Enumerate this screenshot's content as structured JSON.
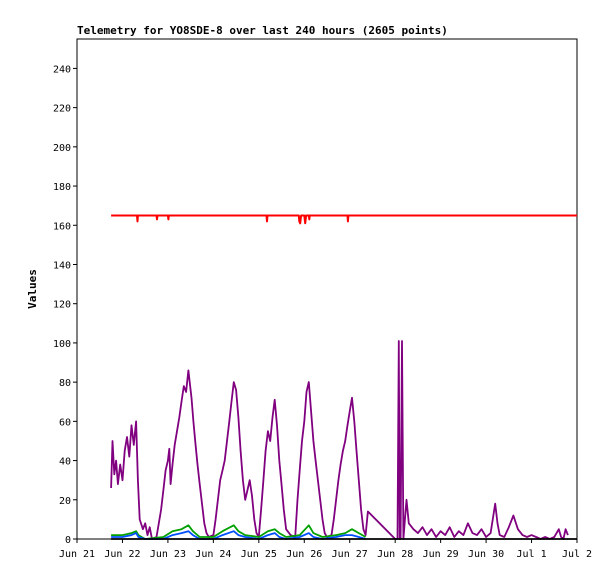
{
  "chart_data": {
    "type": "line",
    "title": "Telemetry for YO8SDE-8 over last 240 hours (2605 points)",
    "xlabel": "",
    "ylabel": "Values",
    "x_ticks": [
      "Jun 21",
      "Jun 22",
      "Jun 23",
      "Jun 24",
      "Jun 25",
      "Jun 26",
      "Jun 27",
      "Jun 28",
      "Jun 29",
      "Jun 30",
      "Jul 1",
      "Jul 2"
    ],
    "xlim_days": [
      0,
      11
    ],
    "y_ticks": [
      0,
      20,
      40,
      60,
      80,
      100,
      120,
      140,
      160,
      180,
      200,
      220,
      240
    ],
    "ylim": [
      0,
      255
    ],
    "grid": false,
    "legend": "none",
    "series": [
      {
        "color": "#ff0000",
        "points": [
          [
            0.75,
            165
          ],
          [
            1.32,
            165
          ],
          [
            1.33,
            162
          ],
          [
            1.34,
            165
          ],
          [
            1.75,
            165
          ],
          [
            1.76,
            163
          ],
          [
            1.77,
            165
          ],
          [
            2.0,
            165
          ],
          [
            2.01,
            163
          ],
          [
            2.02,
            165
          ],
          [
            4.17,
            165
          ],
          [
            4.18,
            162
          ],
          [
            4.19,
            165
          ],
          [
            4.88,
            165
          ],
          [
            4.89,
            162
          ],
          [
            4.91,
            161
          ],
          [
            4.93,
            165
          ],
          [
            5.0,
            165
          ],
          [
            5.02,
            161
          ],
          [
            5.04,
            165
          ],
          [
            5.1,
            165
          ],
          [
            5.11,
            163
          ],
          [
            5.12,
            165
          ],
          [
            5.95,
            165
          ],
          [
            5.96,
            162
          ],
          [
            5.97,
            165
          ],
          [
            11.0,
            165
          ]
        ]
      },
      {
        "color": "#800080",
        "points": [
          [
            0.75,
            26
          ],
          [
            0.78,
            50
          ],
          [
            0.82,
            33
          ],
          [
            0.86,
            40
          ],
          [
            0.9,
            28
          ],
          [
            0.95,
            38
          ],
          [
            1.0,
            30
          ],
          [
            1.05,
            45
          ],
          [
            1.1,
            52
          ],
          [
            1.15,
            42
          ],
          [
            1.2,
            58
          ],
          [
            1.25,
            48
          ],
          [
            1.3,
            60
          ],
          [
            1.34,
            30
          ],
          [
            1.38,
            10
          ],
          [
            1.45,
            5
          ],
          [
            1.5,
            8
          ],
          [
            1.55,
            2
          ],
          [
            1.6,
            6
          ],
          [
            1.65,
            0
          ],
          [
            1.75,
            1
          ],
          [
            1.85,
            15
          ],
          [
            1.9,
            25
          ],
          [
            1.95,
            35
          ],
          [
            2.0,
            40
          ],
          [
            2.03,
            46
          ],
          [
            2.06,
            28
          ],
          [
            2.1,
            38
          ],
          [
            2.15,
            48
          ],
          [
            2.2,
            55
          ],
          [
            2.25,
            62
          ],
          [
            2.3,
            70
          ],
          [
            2.35,
            78
          ],
          [
            2.4,
            75
          ],
          [
            2.45,
            86
          ],
          [
            2.48,
            80
          ],
          [
            2.52,
            72
          ],
          [
            2.56,
            60
          ],
          [
            2.6,
            50
          ],
          [
            2.65,
            38
          ],
          [
            2.7,
            28
          ],
          [
            2.75,
            18
          ],
          [
            2.8,
            8
          ],
          [
            2.85,
            3
          ],
          [
            2.9,
            1
          ],
          [
            3.0,
            2
          ],
          [
            3.05,
            10
          ],
          [
            3.1,
            20
          ],
          [
            3.15,
            30
          ],
          [
            3.2,
            35
          ],
          [
            3.25,
            40
          ],
          [
            3.3,
            50
          ],
          [
            3.35,
            60
          ],
          [
            3.4,
            70
          ],
          [
            3.45,
            80
          ],
          [
            3.5,
            76
          ],
          [
            3.55,
            62
          ],
          [
            3.6,
            45
          ],
          [
            3.65,
            30
          ],
          [
            3.7,
            20
          ],
          [
            3.75,
            25
          ],
          [
            3.8,
            30
          ],
          [
            3.85,
            22
          ],
          [
            3.9,
            10
          ],
          [
            3.95,
            3
          ],
          [
            4.0,
            1
          ],
          [
            4.05,
            15
          ],
          [
            4.1,
            30
          ],
          [
            4.15,
            45
          ],
          [
            4.2,
            55
          ],
          [
            4.25,
            50
          ],
          [
            4.3,
            62
          ],
          [
            4.35,
            71
          ],
          [
            4.4,
            58
          ],
          [
            4.45,
            40
          ],
          [
            4.5,
            28
          ],
          [
            4.55,
            15
          ],
          [
            4.6,
            5
          ],
          [
            4.7,
            2
          ],
          [
            4.8,
            1
          ],
          [
            4.85,
            20
          ],
          [
            4.9,
            35
          ],
          [
            4.95,
            50
          ],
          [
            5.0,
            60
          ],
          [
            5.05,
            75
          ],
          [
            5.1,
            80
          ],
          [
            5.15,
            65
          ],
          [
            5.2,
            50
          ],
          [
            5.25,
            40
          ],
          [
            5.3,
            30
          ],
          [
            5.35,
            20
          ],
          [
            5.4,
            10
          ],
          [
            5.45,
            3
          ],
          [
            5.5,
            1
          ],
          [
            5.6,
            2
          ],
          [
            5.65,
            10
          ],
          [
            5.7,
            20
          ],
          [
            5.75,
            30
          ],
          [
            5.8,
            38
          ],
          [
            5.85,
            45
          ],
          [
            5.9,
            50
          ],
          [
            5.95,
            58
          ],
          [
            6.0,
            65
          ],
          [
            6.05,
            72
          ],
          [
            6.1,
            60
          ],
          [
            6.15,
            45
          ],
          [
            6.2,
            30
          ],
          [
            6.25,
            15
          ],
          [
            6.3,
            5
          ],
          [
            6.35,
            2
          ],
          [
            6.4,
            14
          ],
          [
            7.0,
            0
          ],
          [
            7.05,
            0
          ],
          [
            7.08,
            101
          ],
          [
            7.1,
            0
          ],
          [
            7.12,
            0
          ],
          [
            7.15,
            101
          ],
          [
            7.18,
            0
          ],
          [
            7.25,
            20
          ],
          [
            7.3,
            8
          ],
          [
            7.4,
            5
          ],
          [
            7.5,
            3
          ],
          [
            7.6,
            6
          ],
          [
            7.7,
            2
          ],
          [
            7.8,
            5
          ],
          [
            7.9,
            1
          ],
          [
            8.0,
            4
          ],
          [
            8.1,
            2
          ],
          [
            8.2,
            6
          ],
          [
            8.3,
            1
          ],
          [
            8.4,
            4
          ],
          [
            8.5,
            2
          ],
          [
            8.6,
            8
          ],
          [
            8.7,
            3
          ],
          [
            8.8,
            2
          ],
          [
            8.9,
            5
          ],
          [
            9.0,
            1
          ],
          [
            9.1,
            3
          ],
          [
            9.2,
            18
          ],
          [
            9.25,
            8
          ],
          [
            9.3,
            2
          ],
          [
            9.4,
            1
          ],
          [
            9.5,
            6
          ],
          [
            9.6,
            12
          ],
          [
            9.7,
            5
          ],
          [
            9.8,
            2
          ],
          [
            9.9,
            1
          ],
          [
            10.0,
            2
          ],
          [
            10.1,
            1
          ],
          [
            10.2,
            0
          ],
          [
            10.3,
            1
          ],
          [
            10.4,
            0
          ],
          [
            10.5,
            1
          ],
          [
            10.6,
            5
          ],
          [
            10.65,
            1
          ],
          [
            10.7,
            0
          ],
          [
            10.75,
            5
          ],
          [
            10.8,
            2
          ]
        ]
      },
      {
        "color": "#00a000",
        "points": [
          [
            0.75,
            2
          ],
          [
            1.0,
            2
          ],
          [
            1.2,
            3
          ],
          [
            1.3,
            4
          ],
          [
            1.35,
            2
          ],
          [
            1.5,
            0
          ],
          [
            1.9,
            1
          ],
          [
            2.1,
            4
          ],
          [
            2.3,
            5
          ],
          [
            2.45,
            7
          ],
          [
            2.55,
            4
          ],
          [
            2.7,
            1
          ],
          [
            3.0,
            1
          ],
          [
            3.2,
            4
          ],
          [
            3.45,
            7
          ],
          [
            3.55,
            4
          ],
          [
            3.7,
            2
          ],
          [
            4.0,
            1
          ],
          [
            4.2,
            4
          ],
          [
            4.35,
            5
          ],
          [
            4.45,
            3
          ],
          [
            4.6,
            1
          ],
          [
            4.9,
            2
          ],
          [
            5.1,
            7
          ],
          [
            5.2,
            3
          ],
          [
            5.4,
            1
          ],
          [
            5.7,
            2
          ],
          [
            5.9,
            3
          ],
          [
            6.05,
            5
          ],
          [
            6.2,
            3
          ],
          [
            6.35,
            1
          ]
        ]
      },
      {
        "color": "#0050ff",
        "points": [
          [
            0.75,
            1
          ],
          [
            1.0,
            1
          ],
          [
            1.2,
            2
          ],
          [
            1.3,
            3
          ],
          [
            1.35,
            1
          ],
          [
            1.5,
            0
          ],
          [
            1.9,
            0
          ],
          [
            2.1,
            2
          ],
          [
            2.3,
            3
          ],
          [
            2.45,
            4
          ],
          [
            2.55,
            2
          ],
          [
            2.7,
            0
          ],
          [
            3.0,
            0
          ],
          [
            3.2,
            2
          ],
          [
            3.45,
            4
          ],
          [
            3.55,
            2
          ],
          [
            3.7,
            1
          ],
          [
            4.0,
            0
          ],
          [
            4.2,
            2
          ],
          [
            4.35,
            3
          ],
          [
            4.45,
            1
          ],
          [
            4.6,
            0
          ],
          [
            4.9,
            1
          ],
          [
            5.1,
            3
          ],
          [
            5.2,
            1
          ],
          [
            5.4,
            0
          ],
          [
            5.7,
            1
          ],
          [
            5.9,
            2
          ],
          [
            6.05,
            2
          ],
          [
            6.2,
            1
          ],
          [
            6.35,
            0
          ]
        ]
      },
      {
        "color": "#000000",
        "points": [
          [
            0.75,
            0
          ],
          [
            11.0,
            0
          ]
        ]
      }
    ]
  }
}
